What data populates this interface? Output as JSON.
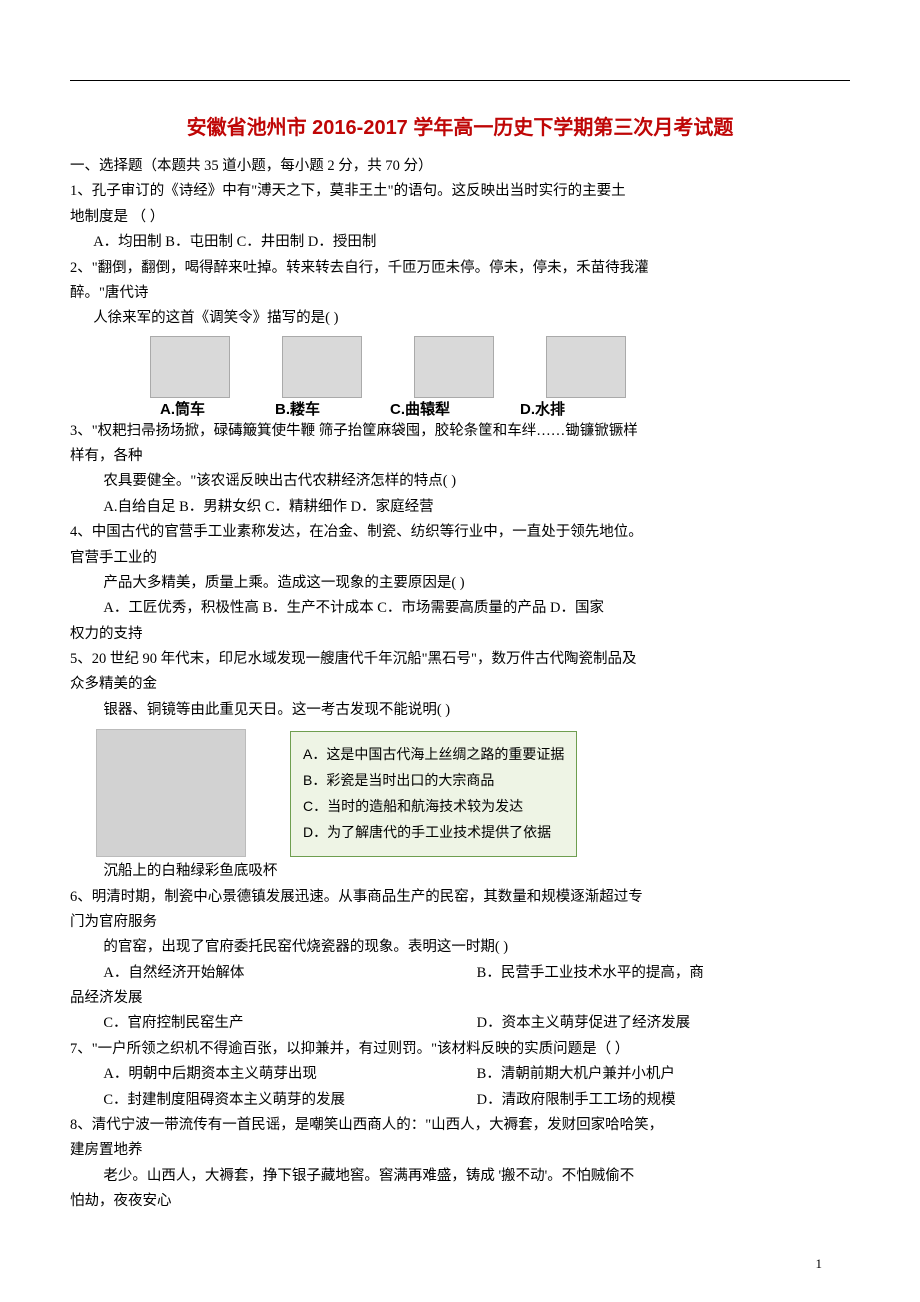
{
  "colors": {
    "title": "#bf0606",
    "box_border": "#6e9e4f",
    "box_bg": "#eef4e5",
    "text": "#000000",
    "page_bg": "#ffffff"
  },
  "title": "安徽省池州市 2016-2017 学年高一历史下学期第三次月考试题",
  "section_header": "一、选择题（本题共 35 道小题，每小题 2 分，共 70 分）",
  "q1": {
    "stem_l1": "1、孔子审订的《诗经》中有\"溥天之下，莫非王土\"的语句。这反映出当时实行的主要土",
    "stem_l2": "地制度是 （    ）",
    "options": "A．均田制            B．屯田制             C．井田制             D．授田制"
  },
  "q2": {
    "stem_l1": "2、\"翻倒，翻倒，喝得醉来吐掉。转来转去自行，千匝万匝未停。停未，停未，禾苗待我灌",
    "stem_l2": "醉。\"唐代诗",
    "stem_l3": "人徐来军的这首《调笑令》描写的是(     )",
    "img_labels": {
      "a": "A.筒车",
      "b": "B.耧车",
      "c": "C.曲辕犁",
      "d": "D.水排"
    }
  },
  "q3": {
    "stem_l1": "3、\"权耙扫帚扬场掀，碌碡簸箕使牛鞭 筛子抬筐麻袋囤，胶轮条筐和车绊……锄镰锨镢样",
    "stem_l2": "样有，各种",
    "stem_l3": "农具要健全。\"该农谣反映出古代农耕经济怎样的特点(     )",
    "options": "A.自给自足           B．男耕女织           C．精耕细作           D．家庭经营"
  },
  "q4": {
    "stem_l1": "4、中国古代的官营手工业素称发达，在冶金、制瓷、纺织等行业中，一直处于领先地位。",
    "stem_l2": "官营手工业的",
    "stem_l3": "产品大多精美，质量上乘。造成这一现象的主要原因是(     )",
    "opt_l1": "A．工匠优秀，积极性高     B．生产不计成本     C．市场需要高质量的产品    D．国家",
    "opt_l2": "权力的支持"
  },
  "q5": {
    "stem_l1": "5、20 世纪 90 年代末，印尼水域发现一艘唐代千年沉船\"黑石号\"，数万件古代陶瓷制品及",
    "stem_l2": "众多精美的金",
    "stem_l3": "银器、铜镜等由此重见天日。这一考古发现不能说明(     )",
    "box": {
      "a": "A．这是中国古代海上丝绸之路的重要证据",
      "b": "B．彩瓷是当时出口的大宗商品",
      "c": "C．当时的造船和航海技术较为发达",
      "d": "D．为了解唐代的手工业技术提供了依据"
    },
    "caption": "沉船上的白釉绿彩鱼底吸杯"
  },
  "q6": {
    "stem_l1": "6、明清时期，制瓷中心景德镇发展迅速。从事商品生产的民窑，其数量和规模逐渐超过专",
    "stem_l2": "门为官府服务",
    "stem_l3": "的官窑，出现了官府委托民窑代烧瓷器的现象。表明这一时期(     )",
    "opt_a": "A．自然经济开始解体",
    "opt_b": "B．民营手工业技术水平的提高，商",
    "opt_b2": "品经济发展",
    "opt_c": "C．官府控制民窑生产",
    "opt_d": "D．资本主义萌芽促进了经济发展"
  },
  "q7": {
    "stem": "7、\"一户所领之织机不得逾百张，以抑兼并，有过则罚。\"该材料反映的实质问题是（      ）",
    "opt_a": "A．明朝中后期资本主义萌芽出现",
    "opt_b": "B．清朝前期大机户兼并小机户",
    "opt_c": "C．封建制度阻碍资本主义萌芽的发展",
    "opt_d": "D．清政府限制手工工场的规模"
  },
  "q8": {
    "stem_l1": "8、清代宁波一带流传有一首民谣，是嘲笑山西商人的：\"山西人，大褥套，发财回家哈哈笑，",
    "stem_l2": "建房置地养",
    "stem_l3": "老少。山西人，大褥套，挣下银子藏地窖。窖满再难盛，铸成 '搬不动'。不怕贼偷不",
    "stem_l4": "怕劫，夜夜安心"
  },
  "page_num": "1"
}
